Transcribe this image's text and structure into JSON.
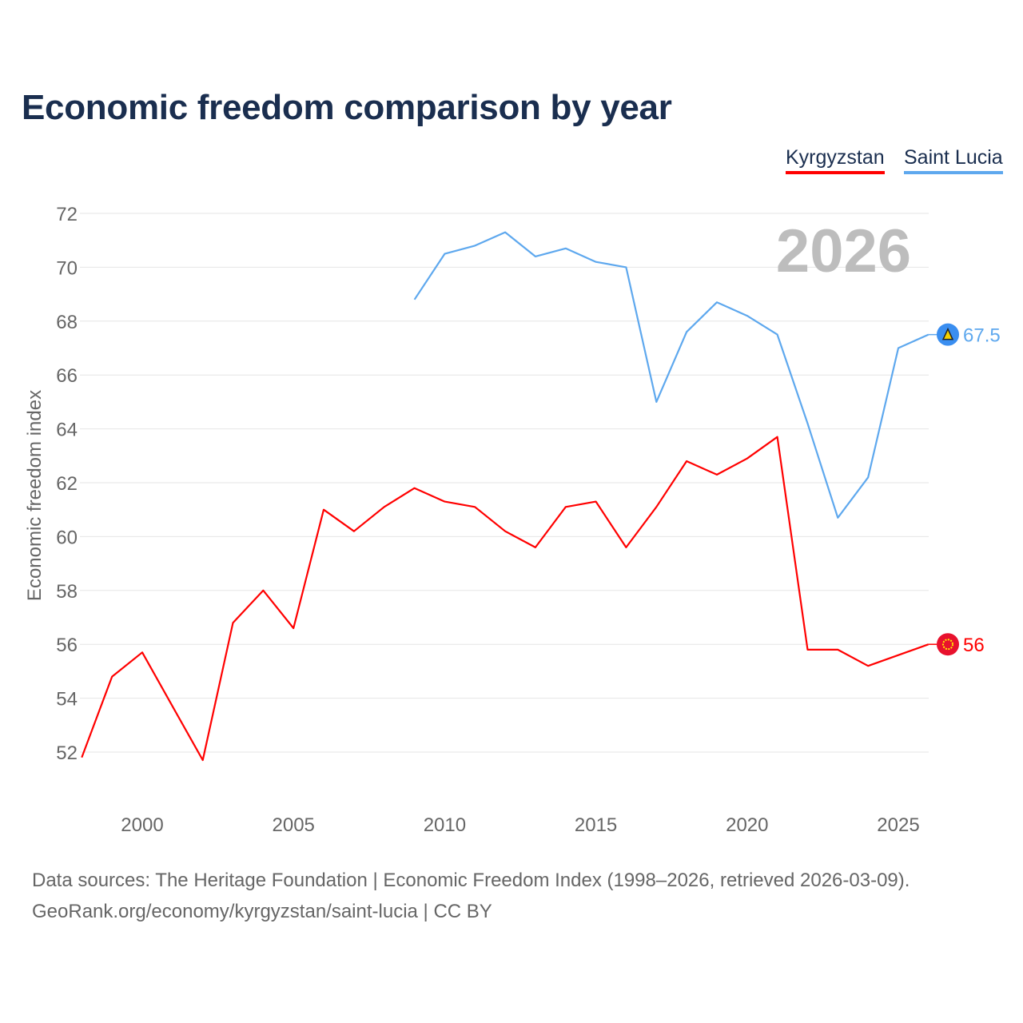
{
  "chart_data": {
    "type": "line",
    "title": "Economic freedom comparison by year",
    "xlabel": "",
    "ylabel": "Economic freedom index",
    "xlim": [
      1998,
      2026
    ],
    "ylim": [
      51,
      72.5
    ],
    "yticks": [
      52,
      54,
      56,
      58,
      60,
      62,
      64,
      66,
      68,
      70,
      72
    ],
    "xticks": [
      2000,
      2005,
      2010,
      2015,
      2020,
      2025
    ],
    "grid": true,
    "legend_placement": "top-right",
    "year_watermark": "2026",
    "series": [
      {
        "name": "Kyrgyzstan",
        "color": "#ff0000",
        "end_label": "56",
        "flag_icon": "kyrgyzstan-flag",
        "x": [
          1998,
          1999,
          2000,
          2001,
          2002,
          2003,
          2004,
          2005,
          2006,
          2007,
          2008,
          2009,
          2010,
          2011,
          2012,
          2013,
          2014,
          2015,
          2016,
          2017,
          2018,
          2019,
          2020,
          2021,
          2022,
          2023,
          2024,
          2025,
          2026
        ],
        "values": [
          51.8,
          54.8,
          55.7,
          53.7,
          51.7,
          56.8,
          58.0,
          56.6,
          61.0,
          60.2,
          61.1,
          61.8,
          61.3,
          61.1,
          60.2,
          59.6,
          61.1,
          61.3,
          59.6,
          61.1,
          62.8,
          62.3,
          62.9,
          63.7,
          55.8,
          55.8,
          55.2,
          55.6,
          56.0
        ]
      },
      {
        "name": "Saint Lucia",
        "color": "#5ea8ee",
        "end_label": "67.5",
        "flag_icon": "saint-lucia-flag",
        "x": [
          2009,
          2010,
          2011,
          2012,
          2013,
          2014,
          2015,
          2016,
          2017,
          2018,
          2019,
          2020,
          2021,
          2022,
          2023,
          2024,
          2025,
          2026
        ],
        "values": [
          68.8,
          70.5,
          70.8,
          71.3,
          70.4,
          70.7,
          70.2,
          70.0,
          65.0,
          67.6,
          68.7,
          68.2,
          67.5,
          64.2,
          60.7,
          62.2,
          67.0,
          67.5
        ]
      }
    ]
  },
  "footer": {
    "sources": "Data sources: The Heritage Foundation | Economic Freedom Index (1998–2026, retrieved 2026-03-09).",
    "credit": "GeoRank.org/economy/kyrgyzstan/saint-lucia | CC BY"
  }
}
